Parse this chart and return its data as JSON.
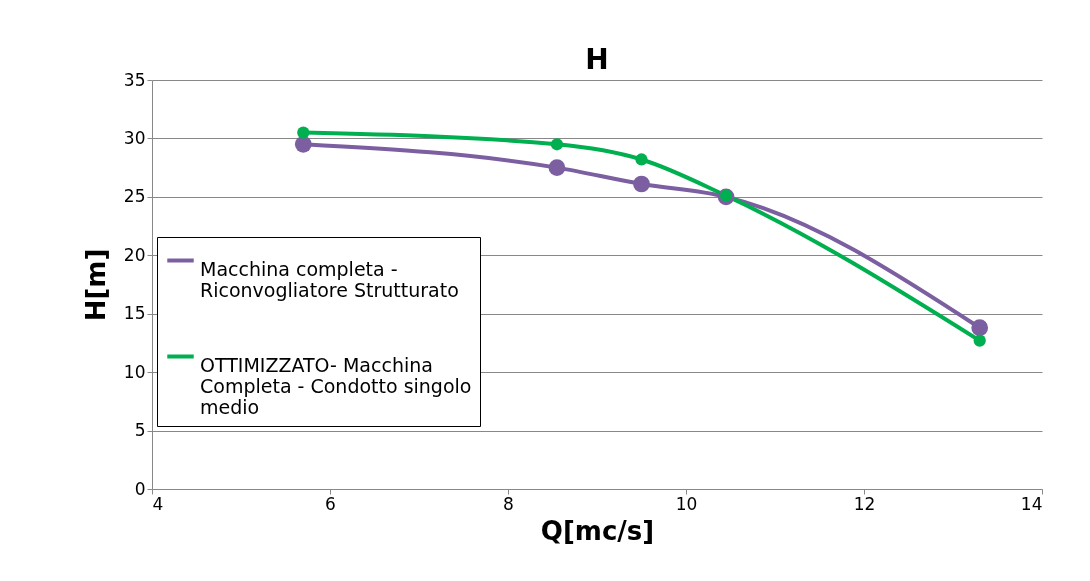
{
  "chart_data": {
    "type": "line",
    "title": "H",
    "xlabel": "Q[mc/s]",
    "ylabel": "H[m]",
    "xlim": [
      4,
      14
    ],
    "xticks": [
      4,
      6,
      8,
      10,
      12,
      14
    ],
    "ylim": [
      0,
      35
    ],
    "yticks": [
      0,
      5,
      10,
      15,
      20,
      25,
      30,
      35
    ],
    "grid": "y",
    "legend": "left",
    "marker": "circle",
    "line_style": "solid",
    "series": [
      {
        "name": "Macchina completa - Riconvogliatore Strutturato",
        "color": "#7b5fa0",
        "x": [
          5.7,
          8.55,
          9.5,
          10.45,
          13.3
        ],
        "values": [
          29.5,
          27.5,
          26.1,
          25.0,
          13.8
        ]
      },
      {
        "name": "OTTIMIZZATO- Macchina Completa - Condotto singolo medio",
        "color": "#00b050",
        "x": [
          5.7,
          8.55,
          9.5,
          10.45,
          13.3
        ],
        "values": [
          30.5,
          29.5,
          28.2,
          25.1,
          12.7
        ]
      }
    ]
  }
}
